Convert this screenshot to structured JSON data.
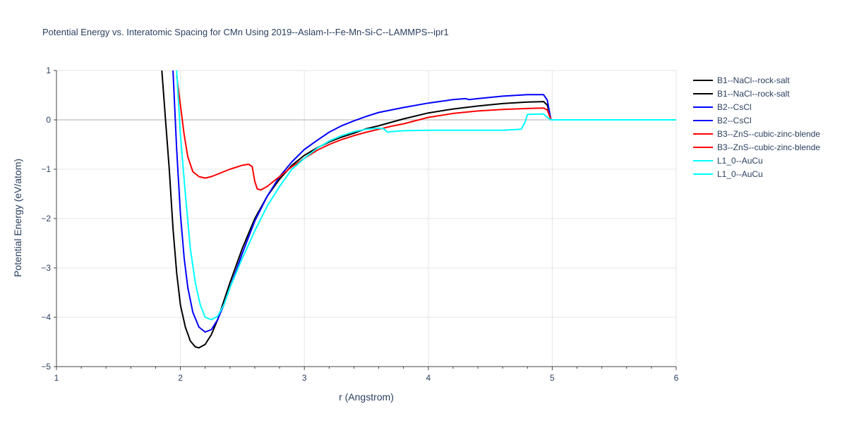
{
  "chart_data": {
    "type": "line",
    "title": "Potential Energy vs. Interatomic Spacing for CMn Using 2019--Aslam-I--Fe-Mn-Si-C--LAMMPS--ipr1",
    "xlabel": "r (Angstrom)",
    "ylabel": "Potential Energy (eV/atom)",
    "xlim": [
      1,
      6
    ],
    "ylim": [
      -5,
      1
    ],
    "x_ticks": [
      1,
      2,
      3,
      4,
      5,
      6
    ],
    "y_ticks": [
      1,
      0,
      -1,
      -2,
      -3,
      -4,
      -5
    ],
    "x_tick_labels": [
      "1",
      "2",
      "3",
      "4",
      "5",
      "6"
    ],
    "y_tick_labels": [
      "1",
      "0",
      "−1",
      "−2",
      "−3",
      "−4",
      "−5"
    ],
    "grid": true,
    "legend_position": "right",
    "series": [
      {
        "name": "B1--NaCl--rock-salt",
        "color": "#000000",
        "x": [
          1.85,
          1.88,
          1.91,
          1.94,
          1.97,
          2.0,
          2.04,
          2.08,
          2.12,
          2.15,
          2.2,
          2.25,
          2.3,
          2.4,
          2.5,
          2.6,
          2.7,
          2.8,
          2.9,
          3.0,
          3.1,
          3.2,
          3.3,
          3.4,
          3.5,
          3.6,
          3.7,
          3.8,
          4.0,
          4.2,
          4.4,
          4.6,
          4.8,
          4.93,
          4.96,
          4.99
        ],
        "y": [
          1.0,
          0.0,
          -1.0,
          -2.2,
          -3.1,
          -3.75,
          -4.2,
          -4.48,
          -4.6,
          -4.62,
          -4.55,
          -4.35,
          -4.05,
          -3.3,
          -2.6,
          -2.0,
          -1.55,
          -1.2,
          -0.92,
          -0.72,
          -0.57,
          -0.45,
          -0.35,
          -0.27,
          -0.18,
          -0.12,
          -0.05,
          0.02,
          0.14,
          0.22,
          0.28,
          0.33,
          0.36,
          0.37,
          0.3,
          0.0
        ]
      },
      {
        "name": "B2--CsCl",
        "color": "#0000ff",
        "x": [
          1.94,
          1.97,
          2.0,
          2.03,
          2.06,
          2.1,
          2.15,
          2.2,
          2.25,
          2.3,
          2.35,
          2.4,
          2.5,
          2.6,
          2.7,
          2.8,
          2.9,
          3.0,
          3.1,
          3.2,
          3.3,
          3.4,
          3.5,
          3.6,
          3.7,
          3.8,
          4.0,
          4.2,
          4.3,
          4.33,
          4.4,
          4.6,
          4.8,
          4.93,
          4.96,
          4.99
        ],
        "y": [
          1.0,
          -0.6,
          -1.9,
          -2.8,
          -3.4,
          -3.9,
          -4.2,
          -4.3,
          -4.25,
          -4.05,
          -3.75,
          -3.4,
          -2.7,
          -2.05,
          -1.55,
          -1.15,
          -0.85,
          -0.6,
          -0.42,
          -0.25,
          -0.12,
          -0.02,
          0.07,
          0.15,
          0.2,
          0.25,
          0.34,
          0.41,
          0.43,
          0.41,
          0.43,
          0.48,
          0.51,
          0.51,
          0.4,
          0.0
        ]
      },
      {
        "name": "B3--ZnS--cubic-zinc-blende",
        "color": "#ff0000",
        "x": [
          1.97,
          2.0,
          2.03,
          2.06,
          2.1,
          2.15,
          2.2,
          2.25,
          2.3,
          2.4,
          2.5,
          2.55,
          2.58,
          2.6,
          2.62,
          2.65,
          2.7,
          2.8,
          2.9,
          3.0,
          3.1,
          3.2,
          3.3,
          3.4,
          3.5,
          3.6,
          3.7,
          3.8,
          4.0,
          4.2,
          4.4,
          4.6,
          4.8,
          4.93,
          4.96,
          4.99
        ],
        "y": [
          0.9,
          0.3,
          -0.3,
          -0.75,
          -1.05,
          -1.15,
          -1.18,
          -1.15,
          -1.1,
          -1.0,
          -0.92,
          -0.9,
          -0.95,
          -1.25,
          -1.4,
          -1.42,
          -1.35,
          -1.15,
          -0.95,
          -0.78,
          -0.62,
          -0.5,
          -0.4,
          -0.32,
          -0.25,
          -0.19,
          -0.13,
          -0.08,
          0.05,
          0.13,
          0.18,
          0.21,
          0.23,
          0.24,
          0.2,
          0.0
        ]
      },
      {
        "name": "L1_0--AuCu",
        "color": "#00ffff",
        "x": [
          1.97,
          2.0,
          2.04,
          2.08,
          2.12,
          2.16,
          2.2,
          2.25,
          2.3,
          2.35,
          2.4,
          2.5,
          2.6,
          2.7,
          2.8,
          2.9,
          3.0,
          3.1,
          3.2,
          3.3,
          3.4,
          3.5,
          3.6,
          3.64,
          3.67,
          3.7,
          3.8,
          4.0,
          4.2,
          4.4,
          4.6,
          4.75,
          4.78,
          4.8,
          4.93,
          4.96,
          4.99,
          5.5,
          6.0
        ],
        "y": [
          1.0,
          -0.3,
          -1.5,
          -2.6,
          -3.3,
          -3.75,
          -4.0,
          -4.05,
          -3.98,
          -3.75,
          -3.4,
          -2.8,
          -2.25,
          -1.75,
          -1.35,
          -1.0,
          -0.78,
          -0.58,
          -0.43,
          -0.32,
          -0.24,
          -0.19,
          -0.17,
          -0.18,
          -0.25,
          -0.24,
          -0.22,
          -0.21,
          -0.21,
          -0.21,
          -0.21,
          -0.19,
          -0.05,
          0.11,
          0.12,
          0.05,
          0.0,
          0.0,
          0.0
        ]
      }
    ],
    "legend_entries": [
      {
        "label": "B1--NaCl--rock-salt",
        "color": "#000000"
      },
      {
        "label": "B1--NaCl--rock-salt",
        "color": "#000000"
      },
      {
        "label": "B2--CsCl",
        "color": "#0000ff"
      },
      {
        "label": "B2--CsCl",
        "color": "#0000ff"
      },
      {
        "label": "B3--ZnS--cubic-zinc-blende",
        "color": "#ff0000"
      },
      {
        "label": "B3--ZnS--cubic-zinc-blende",
        "color": "#ff0000"
      },
      {
        "label": "L1_0--AuCu",
        "color": "#00ffff"
      },
      {
        "label": "L1_0--AuCu",
        "color": "#00ffff"
      }
    ]
  }
}
